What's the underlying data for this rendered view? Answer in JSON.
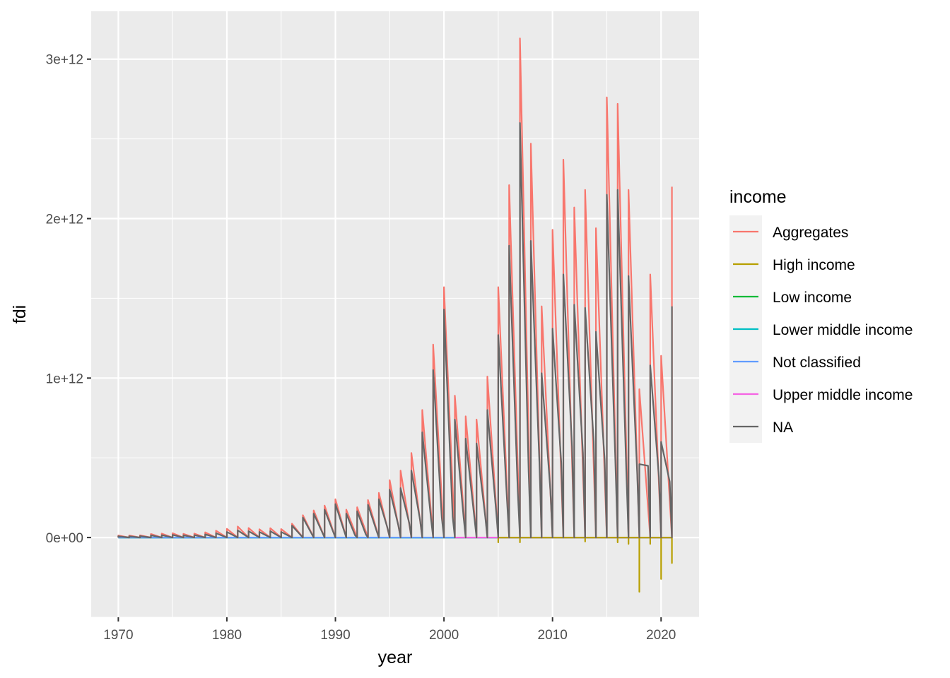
{
  "chart_data": {
    "type": "line",
    "title": "",
    "xlabel": "year",
    "ylabel": "fdi",
    "xlim": [
      1967.5,
      2023.5
    ],
    "ylim": [
      -500000000000,
      3300000000000
    ],
    "x_ticks": [
      1970,
      1980,
      1990,
      2000,
      2010,
      2020
    ],
    "x_tick_labels": [
      "1970",
      "1980",
      "1990",
      "2000",
      "2010",
      "2020"
    ],
    "y_ticks": [
      0,
      1000000000000,
      2000000000000,
      3000000000000
    ],
    "y_tick_labels": [
      "0e+00",
      "1e+12",
      "2e+12",
      "3e+12"
    ],
    "grid": true,
    "legend_title": "income",
    "legend_position": "right",
    "series": [
      {
        "name": "Aggregates",
        "color": "#F8766D",
        "style": "sawtooth",
        "x": [
          1970,
          1971,
          1972,
          1973,
          1974,
          1975,
          1976,
          1977,
          1978,
          1979,
          1980,
          1981,
          1982,
          1983,
          1984,
          1985,
          1986,
          1987,
          1988,
          1989,
          1990,
          1991,
          1992,
          1993,
          1994,
          1995,
          1996,
          1997,
          1998,
          1999,
          2000,
          2001,
          2002,
          2003,
          2004,
          2005,
          2006,
          2007,
          2008,
          2009,
          2010,
          2011,
          2012,
          2013,
          2014,
          2015,
          2016,
          2017,
          2018,
          2019,
          2020,
          2021
        ],
        "values": [
          13000000000,
          13000000000,
          14000000000,
          22000000000,
          25000000000,
          27000000000,
          23000000000,
          25000000000,
          33000000000,
          43000000000,
          55000000000,
          69000000000,
          60000000000,
          52000000000,
          59000000000,
          53000000000,
          87000000000,
          140000000000,
          170000000000,
          200000000000,
          240000000000,
          175000000000,
          190000000000,
          235000000000,
          280000000000,
          360000000000,
          420000000000,
          530000000000,
          800000000000,
          1210000000000,
          1570000000000,
          890000000000,
          760000000000,
          740000000000,
          1010000000000,
          1570000000000,
          2210000000000,
          3130000000000,
          2470000000000,
          1450000000000,
          1930000000000,
          2370000000000,
          2070000000000,
          2180000000000,
          1940000000000,
          2760000000000,
          2720000000000,
          2180000000000,
          930000000000,
          1650000000000,
          1140000000000,
          2200000000000
        ]
      },
      {
        "name": "High income",
        "color": "#B79F00",
        "style": "drops",
        "x": [
          2005,
          2007,
          2013,
          2016,
          2017,
          2018,
          2019,
          2020,
          2021
        ],
        "values": [
          -30000000000,
          -30000000000,
          -25000000000,
          -30000000000,
          -40000000000,
          -340000000000,
          -40000000000,
          -260000000000,
          -160000000000
        ]
      },
      {
        "name": "Low income",
        "color": "#00BA38",
        "style": "flat",
        "x": [
          1970,
          2021
        ],
        "values": [
          0,
          0
        ]
      },
      {
        "name": "Lower middle income",
        "color": "#00BFC4",
        "style": "flat",
        "x": [
          1970,
          2021
        ],
        "values": [
          0,
          0
        ]
      },
      {
        "name": "Not classified",
        "color": "#619CFF",
        "style": "flat",
        "x": [
          1970,
          2001
        ],
        "values": [
          0,
          0
        ]
      },
      {
        "name": "Upper middle income",
        "color": "#F564E3",
        "style": "flat",
        "x": [
          2001,
          2021
        ],
        "values": [
          0,
          0
        ]
      },
      {
        "name": "NA",
        "color": "#666666",
        "style": "sawtooth",
        "x": [
          1970,
          1971,
          1972,
          1973,
          1974,
          1975,
          1976,
          1977,
          1978,
          1979,
          1980,
          1981,
          1982,
          1983,
          1984,
          1985,
          1986,
          1987,
          1988,
          1989,
          1990,
          1991,
          1992,
          1993,
          1994,
          1995,
          1996,
          1997,
          1998,
          1999,
          2000,
          2001,
          2002,
          2003,
          2004,
          2005,
          2006,
          2007,
          2008,
          2009,
          2010,
          2011,
          2012,
          2013,
          2014,
          2015,
          2016,
          2017,
          2018,
          2019,
          2020,
          2021
        ],
        "values": [
          8000000000,
          8000000000,
          9000000000,
          14000000000,
          15000000000,
          17000000000,
          14000000000,
          15000000000,
          20000000000,
          27000000000,
          35000000000,
          45000000000,
          40000000000,
          35000000000,
          40000000000,
          35000000000,
          75000000000,
          125000000000,
          150000000000,
          175000000000,
          210000000000,
          150000000000,
          165000000000,
          205000000000,
          240000000000,
          300000000000,
          310000000000,
          420000000000,
          660000000000,
          1050000000000,
          1430000000000,
          740000000000,
          620000000000,
          590000000000,
          800000000000,
          1270000000000,
          1830000000000,
          2600000000000,
          1860000000000,
          1030000000000,
          1310000000000,
          1650000000000,
          1460000000000,
          1440000000000,
          1290000000000,
          2150000000000,
          2180000000000,
          1640000000000,
          460000000000,
          1080000000000,
          600000000000,
          1450000000000
        ],
        "mid": [
          0,
          0,
          0,
          0,
          0,
          0,
          0,
          0,
          0,
          0,
          0,
          0,
          0,
          0,
          0,
          0,
          0,
          0,
          0,
          0,
          0,
          15000000000,
          20000000000,
          40000000000,
          60000000000,
          75000000000,
          90000000000,
          110000000000,
          120000000000,
          125000000000,
          130000000000,
          135000000000,
          125000000000,
          130000000000,
          170000000000,
          240000000000,
          290000000000,
          410000000000,
          460000000000,
          300000000000,
          470000000000,
          570000000000,
          530000000000,
          600000000000,
          490000000000,
          460000000000,
          410000000000,
          400000000000,
          450000000000,
          380000000000,
          350000000000,
          0
        ]
      }
    ]
  }
}
